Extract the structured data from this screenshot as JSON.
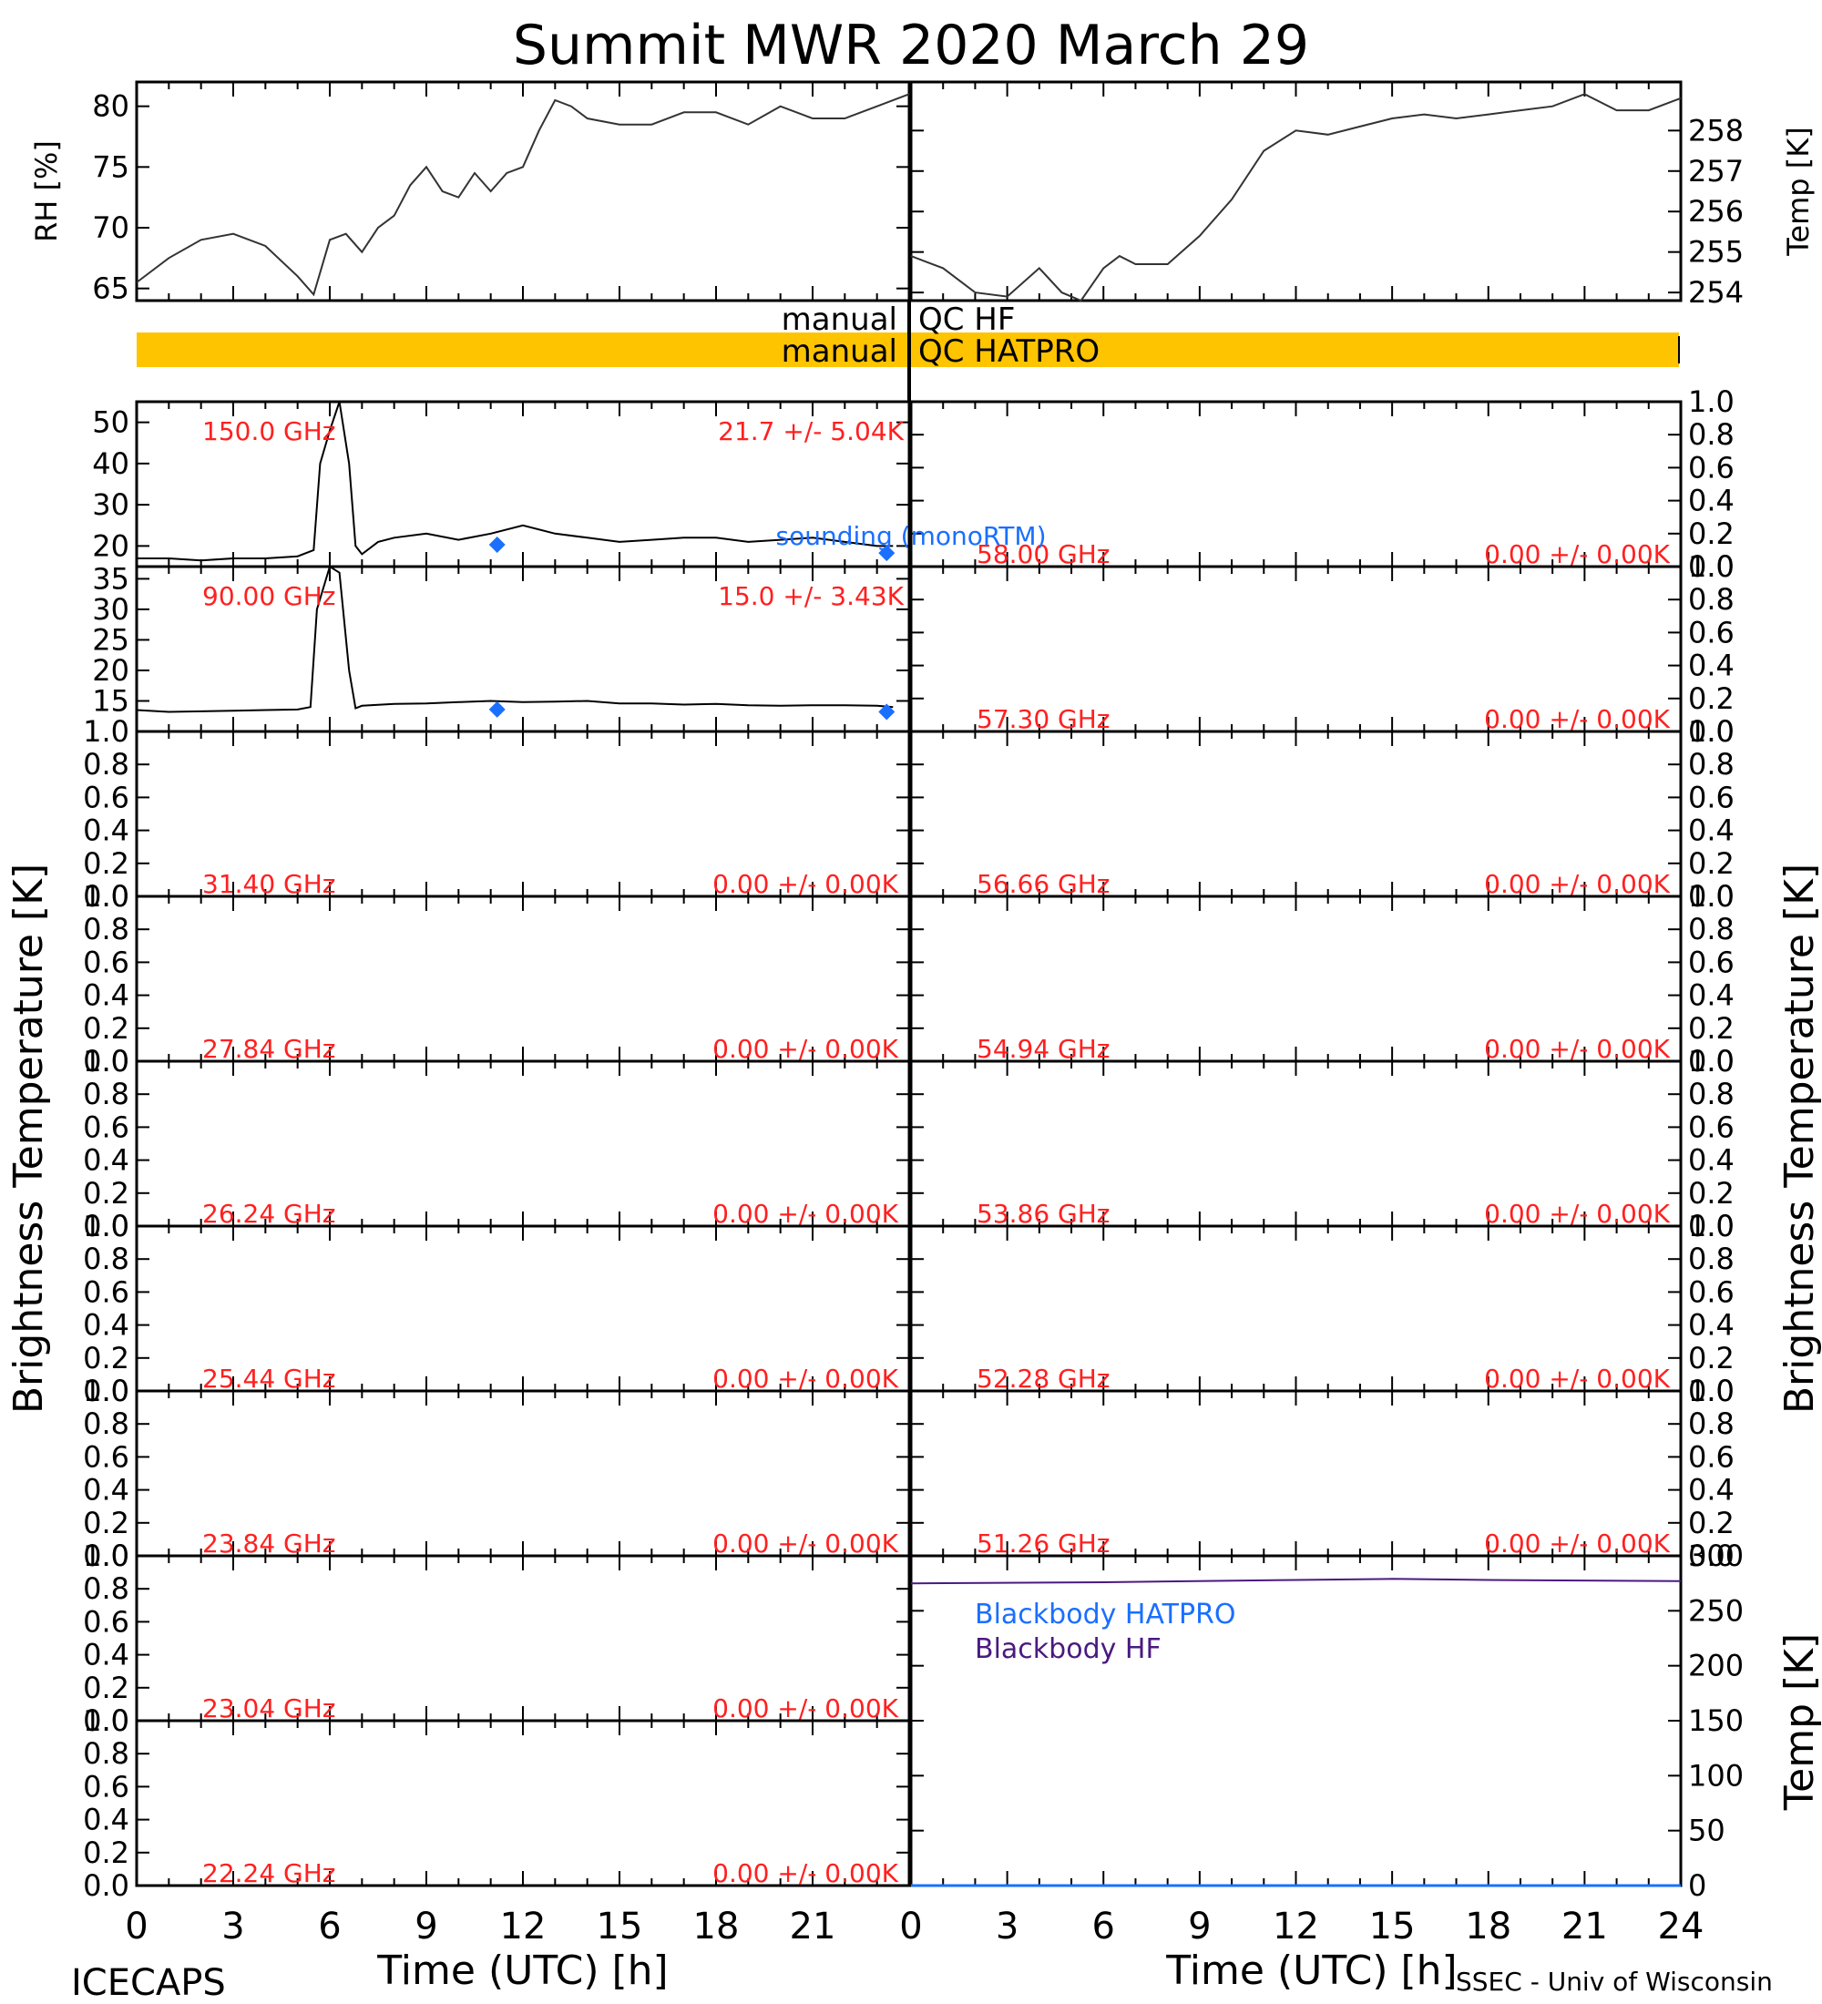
{
  "title": "Summit MWR 2020 March 29",
  "footer": {
    "left": "ICECAPS",
    "right": "SSEC - Univ of Wisconsin"
  },
  "colors": {
    "axis": "#000000",
    "channel_label": "#ff2020",
    "sounding": "#1a6fff",
    "qc_bar": "#ffc400",
    "bb_hatpro": "#1a6fff",
    "bb_hf": "#4a1a80"
  },
  "chart_data": [
    {
      "id": "met-rh",
      "type": "line",
      "ylabel": "RH [%]",
      "xlim": [
        0,
        24
      ],
      "ylim": [
        64,
        82
      ],
      "yticks": [
        "65",
        "70",
        "75",
        "80"
      ],
      "x": [
        0,
        1,
        2,
        3,
        4,
        5,
        5.5,
        6,
        6.5,
        7,
        7.5,
        8,
        8.5,
        9,
        9.5,
        10,
        10.5,
        11,
        11.5,
        12,
        12.5,
        13,
        13.5,
        14,
        15,
        16,
        17,
        18,
        19,
        20,
        21,
        22,
        23,
        24
      ],
      "values": [
        65.5,
        67.5,
        69,
        69.5,
        68.5,
        66,
        64.5,
        69,
        69.5,
        68,
        70,
        71,
        73.5,
        75,
        73,
        72.5,
        74.5,
        73,
        74.5,
        75,
        78,
        80.5,
        80,
        79,
        78.5,
        78.5,
        79.5,
        79.5,
        78.5,
        80,
        79,
        79,
        80,
        81
      ]
    },
    {
      "id": "met-temp",
      "type": "line",
      "ylabel": "Temp [K]",
      "xlim": [
        0,
        24
      ],
      "ylim": [
        253.8,
        259.2
      ],
      "yticks": [
        "254",
        "255",
        "256",
        "257",
        "258"
      ],
      "x": [
        0,
        1,
        2,
        3,
        4,
        4.7,
        5.3,
        6,
        6.5,
        7,
        8,
        9,
        10,
        11,
        12,
        13,
        14,
        15,
        16,
        17,
        18,
        19,
        20,
        21,
        22,
        23,
        24
      ],
      "values": [
        254.9,
        254.6,
        254.0,
        253.9,
        254.6,
        254.0,
        253.8,
        254.6,
        254.9,
        254.7,
        254.7,
        255.4,
        256.3,
        257.5,
        258.0,
        257.9,
        258.1,
        258.3,
        258.4,
        258.3,
        258.4,
        258.5,
        258.6,
        258.9,
        258.5,
        258.5,
        258.8
      ]
    },
    {
      "id": "ch-150",
      "type": "line",
      "xlim": [
        0,
        24
      ],
      "ylim": [
        15,
        55
      ],
      "yticks": [
        "20",
        "30",
        "40",
        "50"
      ],
      "channel": "150.0 GHz",
      "stats": "21.7 +/-  5.04K",
      "x": [
        0,
        1,
        2,
        3,
        4,
        5,
        5.5,
        5.7,
        6,
        6.3,
        6.6,
        6.8,
        7,
        7.5,
        8,
        9,
        10,
        11,
        12,
        13,
        14,
        15,
        16,
        17,
        18,
        19,
        20,
        21,
        22,
        23,
        23.5
      ],
      "values": [
        17,
        17,
        16.5,
        17,
        17,
        17.5,
        19,
        40,
        48,
        55,
        40,
        20,
        18,
        21,
        22,
        23,
        21.5,
        23,
        25,
        23,
        22,
        21,
        21.5,
        22,
        22,
        21,
        21.5,
        22,
        21,
        20,
        20
      ],
      "sounding": {
        "name": "sounding (monoRTM)",
        "x": [
          11.2,
          23.3
        ],
        "values": [
          20.3,
          18.3
        ]
      }
    },
    {
      "id": "ch-90",
      "type": "line",
      "xlim": [
        0,
        24
      ],
      "ylim": [
        10,
        37
      ],
      "yticks": [
        "15",
        "20",
        "25",
        "30",
        "35"
      ],
      "channel": "90.00 GHz",
      "stats": "15.0 +/-  3.43K",
      "x": [
        0,
        1,
        2,
        3,
        4,
        5,
        5.4,
        5.6,
        6,
        6.3,
        6.6,
        6.8,
        7,
        8,
        9,
        10,
        11,
        12,
        13,
        14,
        15,
        16,
        17,
        18,
        19,
        20,
        21,
        22,
        23,
        23.5
      ],
      "values": [
        13.5,
        13.2,
        13.3,
        13.4,
        13.5,
        13.6,
        14,
        30,
        37,
        36,
        20,
        13.8,
        14.2,
        14.5,
        14.6,
        14.8,
        15,
        14.8,
        14.9,
        15,
        14.6,
        14.6,
        14.4,
        14.5,
        14.3,
        14.2,
        14.3,
        14.3,
        14.2,
        14.0
      ],
      "sounding": {
        "x": [
          11.2,
          23.3
        ],
        "values": [
          13.6,
          13.2
        ]
      }
    },
    {
      "id": "ch-31",
      "type": "line",
      "ylim": [
        0,
        1
      ],
      "yticks": [
        "0.0",
        "0.2",
        "0.4",
        "0.6",
        "0.8",
        "1.0"
      ],
      "channel": "31.40 GHz",
      "stats": "0.00 +/-  0.00K",
      "x": [],
      "values": []
    },
    {
      "id": "ch-27",
      "type": "line",
      "ylim": [
        0,
        1
      ],
      "yticks": [
        "0.0",
        "0.2",
        "0.4",
        "0.6",
        "0.8",
        "1.0"
      ],
      "channel": "27.84 GHz",
      "stats": "0.00 +/-  0.00K",
      "x": [],
      "values": []
    },
    {
      "id": "ch-26",
      "type": "line",
      "ylim": [
        0,
        1
      ],
      "yticks": [
        "0.0",
        "0.2",
        "0.4",
        "0.6",
        "0.8",
        "1.0"
      ],
      "channel": "26.24 GHz",
      "stats": "0.00 +/-  0.00K",
      "x": [],
      "values": []
    },
    {
      "id": "ch-25",
      "type": "line",
      "ylim": [
        0,
        1
      ],
      "yticks": [
        "0.0",
        "0.2",
        "0.4",
        "0.6",
        "0.8",
        "1.0"
      ],
      "channel": "25.44 GHz",
      "stats": "0.00 +/-  0.00K",
      "x": [],
      "values": []
    },
    {
      "id": "ch-23b",
      "type": "line",
      "ylim": [
        0,
        1
      ],
      "yticks": [
        "0.0",
        "0.2",
        "0.4",
        "0.6",
        "0.8",
        "1.0"
      ],
      "channel": "23.84 GHz",
      "stats": "0.00 +/-  0.00K",
      "x": [],
      "values": []
    },
    {
      "id": "ch-23a",
      "type": "line",
      "ylim": [
        0,
        1
      ],
      "yticks": [
        "0.0",
        "0.2",
        "0.4",
        "0.6",
        "0.8",
        "1.0"
      ],
      "channel": "23.04 GHz",
      "stats": "0.00 +/-  0.00K",
      "x": [],
      "values": []
    },
    {
      "id": "ch-22",
      "type": "line",
      "ylim": [
        0,
        1
      ],
      "yticks": [
        "0.0",
        "0.2",
        "0.4",
        "0.6",
        "0.8",
        "1.0"
      ],
      "channel": "22.24 GHz",
      "stats": "0.00 +/-  0.00K",
      "x": [],
      "values": []
    },
    {
      "id": "ch-58",
      "type": "line",
      "ylim": [
        0,
        1
      ],
      "yticks": [
        "0.0",
        "0.2",
        "0.4",
        "0.6",
        "0.8",
        "1.0"
      ],
      "channel": "58.00 GHz",
      "stats": "0.00 +/-  0.00K",
      "x": [],
      "values": []
    },
    {
      "id": "ch-57",
      "type": "line",
      "ylim": [
        0,
        1
      ],
      "yticks": [
        "0.0",
        "0.2",
        "0.4",
        "0.6",
        "0.8",
        "1.0"
      ],
      "channel": "57.30 GHz",
      "stats": "0.00 +/-  0.00K",
      "x": [],
      "values": []
    },
    {
      "id": "ch-56",
      "type": "line",
      "ylim": [
        0,
        1
      ],
      "yticks": [
        "0.0",
        "0.2",
        "0.4",
        "0.6",
        "0.8",
        "1.0"
      ],
      "channel": "56.66 GHz",
      "stats": "0.00 +/-  0.00K",
      "x": [],
      "values": []
    },
    {
      "id": "ch-54",
      "type": "line",
      "ylim": [
        0,
        1
      ],
      "yticks": [
        "0.0",
        "0.2",
        "0.4",
        "0.6",
        "0.8",
        "1.0"
      ],
      "channel": "54.94 GHz",
      "stats": "0.00 +/-  0.00K",
      "x": [],
      "values": []
    },
    {
      "id": "ch-53",
      "type": "line",
      "ylim": [
        0,
        1
      ],
      "yticks": [
        "0.0",
        "0.2",
        "0.4",
        "0.6",
        "0.8",
        "1.0"
      ],
      "channel": "53.86 GHz",
      "stats": "0.00 +/-  0.00K",
      "x": [],
      "values": []
    },
    {
      "id": "ch-52",
      "type": "line",
      "ylim": [
        0,
        1
      ],
      "yticks": [
        "0.0",
        "0.2",
        "0.4",
        "0.6",
        "0.8",
        "1.0"
      ],
      "channel": "52.28 GHz",
      "stats": "0.00 +/-  0.00K",
      "x": [],
      "values": []
    },
    {
      "id": "ch-51",
      "type": "line",
      "ylim": [
        0,
        1
      ],
      "yticks": [
        "0.0",
        "0.2",
        "0.4",
        "0.6",
        "0.8",
        "1.0"
      ],
      "channel": "51.26 GHz",
      "stats": "0.00 +/-  0.00K",
      "x": [],
      "values": []
    },
    {
      "id": "blackbody",
      "type": "line",
      "xlim": [
        0,
        24
      ],
      "ylim": [
        0,
        300
      ],
      "yticks": [
        "0",
        "50",
        "100",
        "150",
        "200",
        "250",
        "300"
      ],
      "ylabel": "Temp [K]",
      "series": [
        {
          "name": "Blackbody HATPRO",
          "x": [
            0,
            24
          ],
          "values": [
            0,
            0
          ]
        },
        {
          "name": "Blackbody HF",
          "x": [
            0,
            6,
            12,
            15,
            18,
            24
          ],
          "values": [
            275,
            276,
            278,
            279,
            278,
            277
          ]
        }
      ]
    }
  ],
  "axes": {
    "brightness_label": "Brightness Temperature [K]",
    "xlabel": "Time (UTC) [h]",
    "xticks": [
      "0",
      "3",
      "6",
      "9",
      "12",
      "15",
      "18",
      "21",
      "24"
    ]
  },
  "qc": {
    "hf_label_left": "manual",
    "hf_label_right": "QC HF",
    "hatpro_label_left": "manual",
    "hatpro_label_right": "QC HATPRO",
    "hatpro_flag_fraction": 1.0
  }
}
